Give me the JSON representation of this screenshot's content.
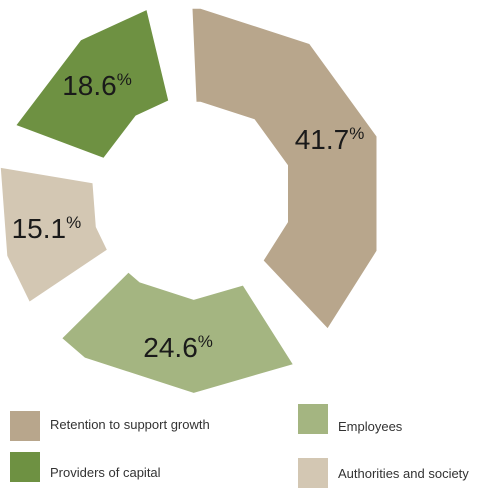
{
  "chart_data": {
    "type": "pie",
    "style": "exploded donut, faceted (polygonal) edges",
    "slices": [
      {
        "label": "Retention to support growth",
        "value": 41.7,
        "display": "41.7",
        "unit": "%",
        "color": "#b8a68c"
      },
      {
        "label": "Employees",
        "value": 24.6,
        "display": "24.6",
        "unit": "%",
        "color": "#a4b581"
      },
      {
        "label": "Authorities and society",
        "value": 15.1,
        "display": "15.1",
        "unit": "%",
        "color": "#d3c7b3"
      },
      {
        "label": "Providers of capital",
        "value": 18.6,
        "display": "18.6",
        "unit": "%",
        "color": "#6e9142"
      }
    ],
    "legend_position": "bottom",
    "legend_order": [
      0,
      1,
      3,
      2
    ]
  }
}
